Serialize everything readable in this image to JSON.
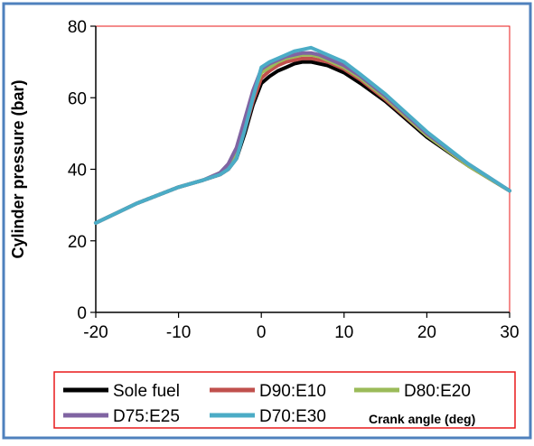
{
  "chart_data": {
    "type": "line",
    "title": "",
    "xlabel": "Crank angle (deg)",
    "ylabel": "Cylinder pressure (bar)",
    "xlim": [
      -20,
      30
    ],
    "ylim": [
      0,
      80
    ],
    "xticks": [
      -20,
      -10,
      0,
      10,
      20,
      30
    ],
    "yticks": [
      0,
      20,
      40,
      60,
      80
    ],
    "x_tick_labels": [
      "-20",
      "-10",
      "0",
      "10",
      "20",
      "30"
    ],
    "y_tick_labels": [
      "0",
      "20",
      "40",
      "60",
      "80"
    ],
    "grid": false,
    "legend_position": "bottom",
    "series": [
      {
        "name": "Sole fuel",
        "color": "#000000",
        "x": [
          -20,
          -15,
          -10,
          -7,
          -5,
          -4,
          -3,
          -2,
          -1,
          0,
          1,
          2,
          3,
          4,
          5,
          6,
          7,
          8,
          10,
          12,
          15,
          20,
          25,
          30
        ],
        "y": [
          25,
          30.5,
          35,
          37,
          38.5,
          40,
          43,
          50,
          58,
          64,
          66,
          67.5,
          68.5,
          69.5,
          70,
          70,
          69.5,
          69,
          67,
          64,
          59,
          49,
          41,
          34
        ]
      },
      {
        "name": "D90:E10",
        "color": "#c0504d",
        "x": [
          -20,
          -15,
          -10,
          -7,
          -5,
          -4,
          -3,
          -2,
          -1,
          0,
          1,
          2,
          3,
          4,
          5,
          6,
          7,
          8,
          10,
          12,
          15,
          20,
          25,
          30
        ],
        "y": [
          25,
          30.5,
          35,
          37,
          38.5,
          40,
          43.5,
          51,
          59,
          65.5,
          67.5,
          69,
          70,
          70.5,
          71,
          71,
          70.5,
          70,
          68,
          65,
          59.5,
          49.5,
          41,
          34
        ]
      },
      {
        "name": "D80:E20",
        "color": "#9bbb59",
        "x": [
          -20,
          -15,
          -10,
          -7,
          -5,
          -4,
          -3,
          -2,
          -1,
          0,
          1,
          2,
          3,
          4,
          5,
          6,
          7,
          8,
          10,
          12,
          15,
          20,
          25,
          30
        ],
        "y": [
          25,
          30.5,
          35,
          37,
          39,
          41,
          45,
          53,
          61,
          67,
          68.5,
          70,
          71,
          71.5,
          72,
          72,
          71.5,
          70.5,
          68.5,
          65.5,
          60,
          49.5,
          41,
          34
        ]
      },
      {
        "name": "D75:E25",
        "color": "#8064a2",
        "x": [
          -20,
          -15,
          -10,
          -7,
          -5,
          -4,
          -3,
          -2,
          -1,
          0,
          1,
          2,
          3,
          4,
          5,
          6,
          7,
          8,
          10,
          12,
          15,
          20,
          25,
          30
        ],
        "y": [
          25,
          30.5,
          35,
          37,
          39,
          41.5,
          46,
          54,
          62,
          68,
          69.5,
          70.5,
          71.5,
          72,
          72.5,
          72.5,
          72,
          71,
          69,
          66,
          60.5,
          50,
          41.5,
          34
        ]
      },
      {
        "name": "D70:E30",
        "color": "#4bacc6",
        "x": [
          -20,
          -15,
          -10,
          -7,
          -5,
          -4,
          -3,
          -2,
          -1,
          0,
          1,
          2,
          3,
          4,
          5,
          6,
          7,
          8,
          10,
          12,
          15,
          20,
          25,
          30
        ],
        "y": [
          25,
          30.5,
          35,
          37,
          38.5,
          40,
          43,
          51,
          60,
          68.5,
          70,
          71,
          72,
          73,
          73.5,
          74,
          73,
          72,
          70,
          66.5,
          61,
          50.5,
          41.5,
          34
        ]
      }
    ]
  },
  "colors": {
    "frame_border": "#4f81bd",
    "plot_border": "#e8191a",
    "legend_border": "#e8191a",
    "axis": "#000000"
  }
}
